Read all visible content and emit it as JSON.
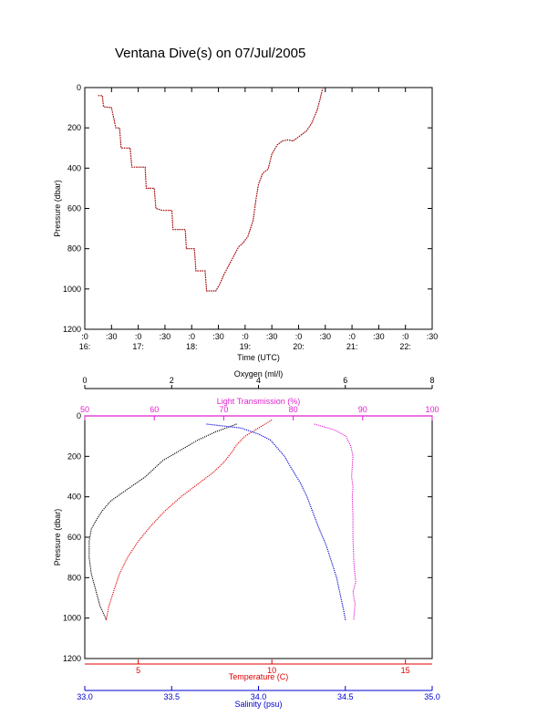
{
  "figure": {
    "title": "Ventana Dive(s) on 07/Jul/2005"
  },
  "colors": {
    "axis": "#000000",
    "oxygen": "#000000",
    "light_transmission": "#e020d0",
    "temperature": "#e00000",
    "salinity": "#0000d0",
    "dive_track": "#c00000"
  },
  "chart_data": [
    {
      "type": "line",
      "title": "",
      "xlabel": "Time (UTC)",
      "ylabel": "Pressure (dbar)",
      "y_inverted": true,
      "ylim": [
        0,
        1200
      ],
      "y_ticks": [
        "0",
        "200",
        "400",
        "600",
        "800",
        "1000",
        "1200"
      ],
      "x_ticks": [
        {
          "top": ":0",
          "bottom": "16:"
        },
        {
          "top": ":30",
          "bottom": ""
        },
        {
          "top": ":0",
          "bottom": "17:"
        },
        {
          "top": ":30",
          "bottom": ""
        },
        {
          "top": ":0",
          "bottom": "18:"
        },
        {
          "top": ":30",
          "bottom": ""
        },
        {
          "top": ":0",
          "bottom": "19:"
        },
        {
          "top": ":30",
          "bottom": ""
        },
        {
          "top": ":0",
          "bottom": "20:"
        },
        {
          "top": ":30",
          "bottom": ""
        },
        {
          "top": ":0",
          "bottom": "21:"
        },
        {
          "top": ":30",
          "bottom": ""
        },
        {
          "top": ":0",
          "bottom": "22:"
        },
        {
          "top": ":30",
          "bottom": ""
        }
      ],
      "xlim_hours": [
        16.0,
        22.5
      ],
      "series": [
        {
          "color_key": "dive_track",
          "points": [
            [
              16.25,
              40
            ],
            [
              16.33,
              40
            ],
            [
              16.35,
              95
            ],
            [
              16.5,
              100
            ],
            [
              16.58,
              200
            ],
            [
              16.65,
              200
            ],
            [
              16.68,
              300
            ],
            [
              16.85,
              300
            ],
            [
              16.88,
              395
            ],
            [
              17.13,
              395
            ],
            [
              17.15,
              500
            ],
            [
              17.3,
              500
            ],
            [
              17.33,
              600
            ],
            [
              17.45,
              610
            ],
            [
              17.63,
              610
            ],
            [
              17.65,
              705
            ],
            [
              17.88,
              705
            ],
            [
              17.9,
              800
            ],
            [
              18.05,
              800
            ],
            [
              18.08,
              910
            ],
            [
              18.25,
              910
            ],
            [
              18.28,
              1010
            ],
            [
              18.45,
              1010
            ],
            [
              18.52,
              980
            ],
            [
              18.6,
              930
            ],
            [
              18.7,
              880
            ],
            [
              18.8,
              830
            ],
            [
              18.88,
              790
            ],
            [
              18.95,
              775
            ],
            [
              19.05,
              740
            ],
            [
              19.15,
              660
            ],
            [
              19.2,
              560
            ],
            [
              19.25,
              480
            ],
            [
              19.33,
              425
            ],
            [
              19.43,
              405
            ],
            [
              19.5,
              330
            ],
            [
              19.6,
              285
            ],
            [
              19.7,
              265
            ],
            [
              19.8,
              260
            ],
            [
              19.9,
              265
            ],
            [
              20.05,
              235
            ],
            [
              20.15,
              215
            ],
            [
              20.25,
              175
            ],
            [
              20.35,
              110
            ],
            [
              20.4,
              60
            ],
            [
              20.45,
              5
            ]
          ]
        }
      ]
    },
    {
      "type": "line",
      "title": "",
      "ylabel": "Pressure (dbar)",
      "y_inverted": true,
      "ylim": [
        0,
        1200
      ],
      "y_ticks": [
        "0",
        "200",
        "400",
        "600",
        "800",
        "1000",
        "1200"
      ],
      "axes": {
        "oxygen": {
          "label": "Oxygen (ml/l)",
          "range": [
            0,
            8
          ],
          "ticks": [
            "0",
            "2",
            "4",
            "6",
            "8"
          ]
        },
        "light_transmission": {
          "label": "Light Transmission (%)",
          "range": [
            50,
            100
          ],
          "ticks": [
            "50",
            "60",
            "70",
            "80",
            "90",
            "100"
          ]
        },
        "temperature": {
          "label": "Temperature (C)",
          "range": [
            3,
            16
          ],
          "ticks": [
            "5",
            "10",
            "15"
          ]
        },
        "salinity": {
          "label": "Salinity (psu)",
          "range": [
            33.0,
            35.0
          ],
          "ticks": [
            "33.0",
            "33.5",
            "34.0",
            "34.5",
            "35.0"
          ]
        }
      },
      "series": [
        {
          "name": "Oxygen (ml/l)",
          "color_key": "oxygen",
          "points": [
            [
              3.5,
              40
            ],
            [
              3.0,
              80
            ],
            [
              2.6,
              120
            ],
            [
              2.2,
              170
            ],
            [
              1.8,
              220
            ],
            [
              1.4,
              300
            ],
            [
              1.0,
              360
            ],
            [
              0.6,
              420
            ],
            [
              0.4,
              470
            ],
            [
              0.25,
              520
            ],
            [
              0.15,
              560
            ],
            [
              0.1,
              620
            ],
            [
              0.1,
              700
            ],
            [
              0.15,
              780
            ],
            [
              0.25,
              860
            ],
            [
              0.35,
              940
            ],
            [
              0.5,
              1010
            ]
          ]
        },
        {
          "name": "Temperature (C)",
          "color_key": "temperature",
          "points": [
            [
              10.0,
              20
            ],
            [
              9.5,
              60
            ],
            [
              9.0,
              100
            ],
            [
              8.7,
              140
            ],
            [
              8.5,
              180
            ],
            [
              8.2,
              230
            ],
            [
              7.8,
              280
            ],
            [
              7.2,
              340
            ],
            [
              6.6,
              400
            ],
            [
              6.0,
              470
            ],
            [
              5.5,
              540
            ],
            [
              5.0,
              620
            ],
            [
              4.6,
              700
            ],
            [
              4.3,
              780
            ],
            [
              4.1,
              860
            ],
            [
              3.9,
              940
            ],
            [
              3.8,
              1010
            ]
          ]
        },
        {
          "name": "Salinity (psu)",
          "color_key": "salinity",
          "points": [
            [
              33.7,
              40
            ],
            [
              33.9,
              60
            ],
            [
              34.0,
              90
            ],
            [
              34.07,
              120
            ],
            [
              34.11,
              160
            ],
            [
              34.15,
              200
            ],
            [
              34.19,
              260
            ],
            [
              34.24,
              330
            ],
            [
              34.28,
              400
            ],
            [
              34.31,
              470
            ],
            [
              34.35,
              560
            ],
            [
              34.39,
              640
            ],
            [
              34.42,
              720
            ],
            [
              34.45,
              800
            ],
            [
              34.47,
              880
            ],
            [
              34.49,
              960
            ],
            [
              34.5,
              1010
            ]
          ]
        },
        {
          "name": "Light Transmission (%)",
          "color_key": "light_transmission",
          "points": [
            [
              83,
              40
            ],
            [
              86,
              70
            ],
            [
              87.6,
              100
            ],
            [
              88.3,
              150
            ],
            [
              88.6,
              200
            ],
            [
              88.5,
              250
            ],
            [
              88.4,
              300
            ],
            [
              88.6,
              350
            ],
            [
              88.5,
              400
            ],
            [
              88.6,
              500
            ],
            [
              88.6,
              600
            ],
            [
              88.7,
              700
            ],
            [
              88.8,
              760
            ],
            [
              89.0,
              820
            ],
            [
              88.6,
              870
            ],
            [
              88.9,
              930
            ],
            [
              88.7,
              1010
            ]
          ]
        }
      ]
    }
  ]
}
